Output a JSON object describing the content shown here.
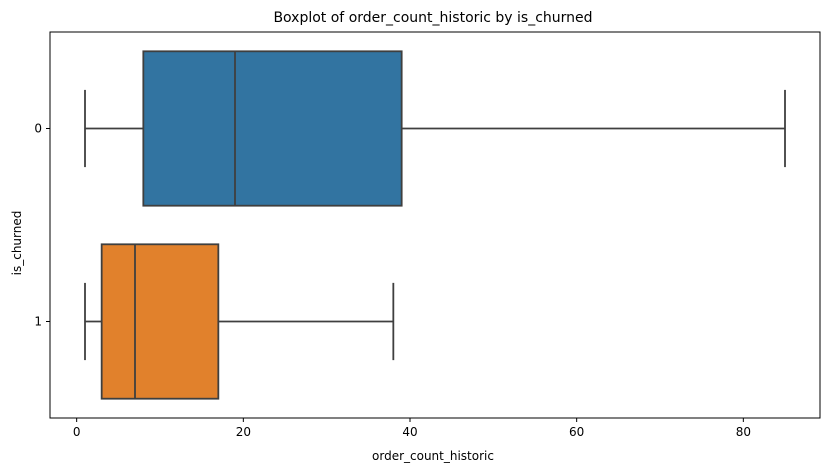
{
  "chart_data": {
    "type": "boxplot",
    "orientation": "horizontal",
    "title": "Boxplot of order_count_historic by is_churned",
    "xlabel": "order_count_historic",
    "ylabel": "is_churned",
    "xlim": [
      -3.2,
      89.2
    ],
    "xticks": [
      0,
      20,
      40,
      60,
      80
    ],
    "xtick_labels": [
      "0",
      "20",
      "40",
      "60",
      "80"
    ],
    "grid": false,
    "categories": [
      "0",
      "1"
    ],
    "boxes": [
      {
        "category": "0",
        "whisker_low": 1,
        "q1": 8,
        "median": 19,
        "q3": 39,
        "whisker_high": 85,
        "color": "#3274a1"
      },
      {
        "category": "1",
        "whisker_low": 1,
        "q1": 3,
        "median": 7,
        "q3": 17,
        "whisker_high": 38,
        "color": "#e1812c"
      }
    ],
    "line_color": "#3f3f3f"
  }
}
